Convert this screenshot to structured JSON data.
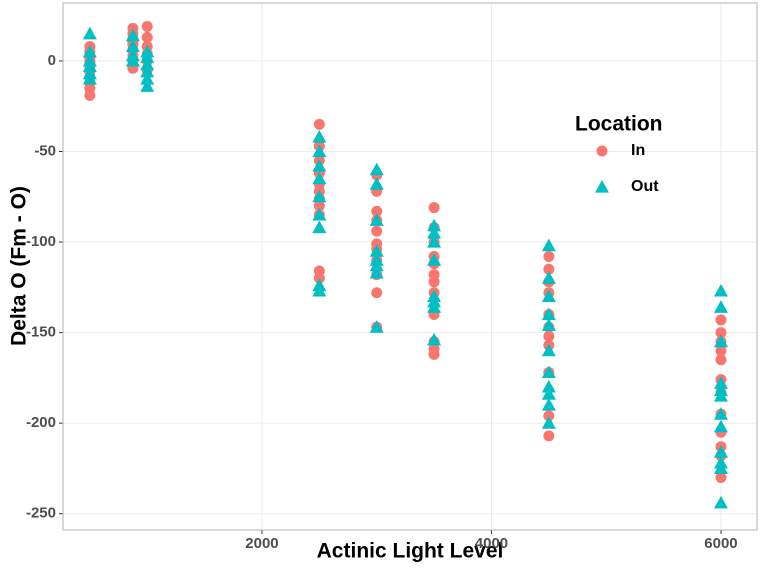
{
  "chart_data": {
    "type": "scatter",
    "x_label": "Actinic Light Level",
    "y_label": "Delta O (Fm - O)",
    "legend_title": "Location",
    "xlim": [
      266,
      6314
    ],
    "ylim": [
      -259,
      32
    ],
    "xticks": [
      2000,
      4000,
      6000
    ],
    "yticks": [
      0,
      -50,
      -100,
      -150,
      -200,
      -250
    ],
    "grid": true,
    "series": [
      {
        "name": "In",
        "color": "#F8766D",
        "marker": "circle",
        "x": [
          500,
          500,
          500,
          500,
          500,
          500,
          500,
          500,
          500,
          500,
          500,
          875,
          875,
          875,
          875,
          875,
          875,
          875,
          875,
          875,
          1000,
          1000,
          1000,
          1000,
          1000,
          1000,
          2500,
          2500,
          2500,
          2500,
          2500,
          2500,
          2500,
          2500,
          2500,
          2500,
          2500,
          3000,
          3000,
          3000,
          3000,
          3000,
          3000,
          3000,
          3000,
          3000,
          3000,
          3000,
          3500,
          3500,
          3500,
          3500,
          3500,
          3500,
          3500,
          3500,
          3500,
          3500,
          3500,
          3500,
          4500,
          4500,
          4500,
          4500,
          4500,
          4500,
          4500,
          4500,
          4500,
          4500,
          4500,
          6000,
          6000,
          6000,
          6000,
          6000,
          6000,
          6000,
          6000,
          6000,
          6000,
          6000,
          6000
        ],
        "y": [
          8,
          5,
          2,
          -3,
          -6,
          -9,
          -12,
          -15,
          -19,
          0,
          -1,
          18,
          15,
          12,
          9,
          6,
          3,
          0,
          -4,
          10,
          19,
          13,
          8,
          4,
          0,
          -5,
          -35,
          -47,
          -55,
          -62,
          -68,
          -72,
          -76,
          -80,
          -85,
          -116,
          -120,
          -63,
          -72,
          -83,
          -88,
          -94,
          -101,
          -104,
          -110,
          -118,
          -128,
          -147,
          -81,
          -92,
          -100,
          -108,
          -112,
          -118,
          -122,
          -128,
          -140,
          -155,
          -159,
          -162,
          -108,
          -115,
          -122,
          -128,
          -140,
          -147,
          -152,
          -157,
          -172,
          -196,
          -207,
          -143,
          -150,
          -155,
          -160,
          -165,
          -176,
          -183,
          -195,
          -205,
          -213,
          -218,
          -230
        ]
      },
      {
        "name": "Out",
        "color": "#00BFC4",
        "marker": "triangle",
        "x": [
          500,
          500,
          500,
          500,
          500,
          500,
          875,
          875,
          875,
          875,
          1000,
          1000,
          1000,
          1000,
          1000,
          1000,
          2500,
          2500,
          2500,
          2500,
          2500,
          2500,
          2500,
          2500,
          2500,
          3000,
          3000,
          3000,
          3000,
          3000,
          3000,
          3000,
          3000,
          3500,
          3500,
          3500,
          3500,
          3500,
          3500,
          3500,
          3500,
          4500,
          4500,
          4500,
          4500,
          4500,
          4500,
          4500,
          4500,
          4500,
          4500,
          4500,
          6000,
          6000,
          6000,
          6000,
          6000,
          6000,
          6000,
          6000,
          6000,
          6000,
          6000,
          6000
        ],
        "y": [
          15,
          5,
          0,
          -3,
          -7,
          -10,
          14,
          8,
          3,
          0,
          5,
          2,
          -2,
          -6,
          -10,
          -14,
          -42,
          -50,
          -58,
          -65,
          -75,
          -85,
          -92,
          -124,
          -127,
          -60,
          -68,
          -88,
          -105,
          -110,
          -113,
          -117,
          -147,
          -91,
          -95,
          -100,
          -110,
          -130,
          -133,
          -136,
          -154,
          -102,
          -120,
          -130,
          -140,
          -146,
          -160,
          -172,
          -180,
          -184,
          -190,
          -200,
          -127,
          -136,
          -155,
          -178,
          -182,
          -185,
          -195,
          -202,
          -216,
          -222,
          -225,
          -244
        ]
      }
    ]
  }
}
